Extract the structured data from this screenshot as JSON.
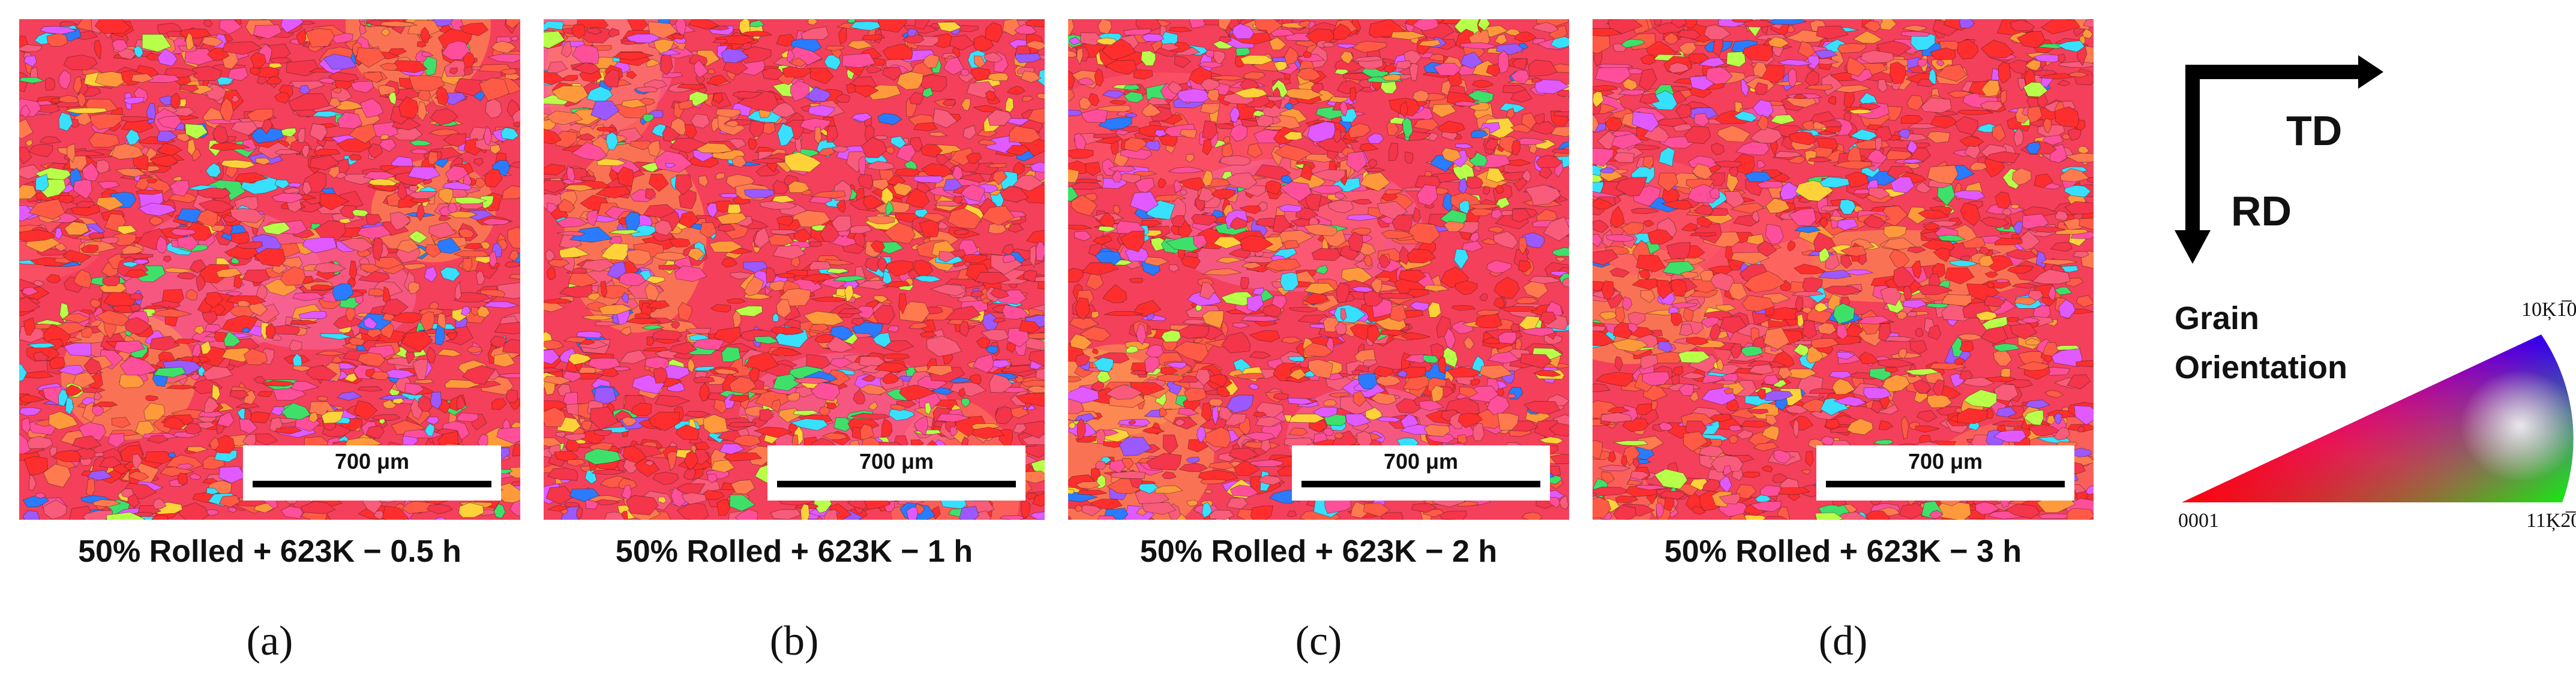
{
  "panels": [
    {
      "caption": "50% Rolled + 623K − 0.5 h",
      "letter": "(a)",
      "scale_label": "700 μm"
    },
    {
      "caption": "50% Rolled + 623K − 1 h",
      "letter": "(b)",
      "scale_label": "700 μm"
    },
    {
      "caption": "50% Rolled + 623K − 2 h",
      "letter": "(c)",
      "scale_label": "700 μm"
    },
    {
      "caption": "50% Rolled + 623K − 3 h",
      "letter": "(d)",
      "scale_label": "700 μm"
    }
  ],
  "axes": {
    "horizontal_label": "TD",
    "vertical_label": "RD",
    "arrow_color": "#000000"
  },
  "legend": {
    "title_line1": "Grain",
    "title_line2": "Orientation",
    "poles": {
      "basal": "0001",
      "prism1": "10Ķ1̅0",
      "prism2": "11Ķ2̅0"
    },
    "colors": {
      "basal": "#ff0000",
      "prism1": "#0000ff",
      "prism2": "#00ff00"
    }
  },
  "map_palette": [
    "#f4354a",
    "#ff2e2e",
    "#ff5a45",
    "#ff7a4f",
    "#f95b7a",
    "#ff4f9a",
    "#e05aff",
    "#ff9a3c",
    "#ffd23a",
    "#37e0ff",
    "#2a7bff",
    "#3fe06a",
    "#b8ff4a",
    "#9b59ff"
  ]
}
